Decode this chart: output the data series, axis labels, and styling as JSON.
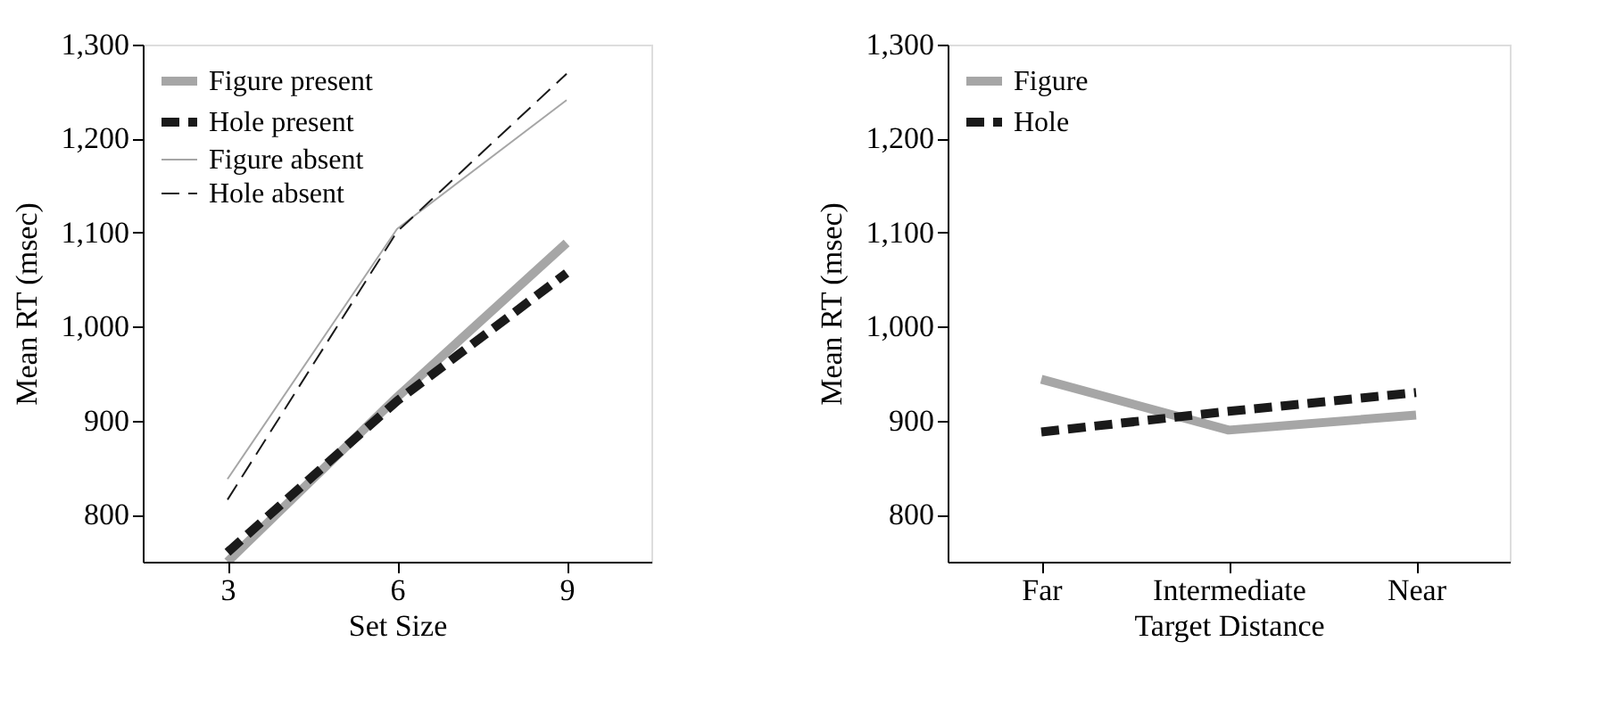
{
  "chart_data": [
    {
      "type": "line",
      "xlabel": "Set Size",
      "ylabel": "Mean RT (msec)",
      "x": [
        3,
        6,
        9
      ],
      "xlim": [
        1.5,
        10.5
      ],
      "xticks": [
        3,
        6,
        9
      ],
      "ylim": [
        750,
        1300
      ],
      "yticks": [
        800,
        900,
        {
          "value": 1000,
          "label": "1,000"
        },
        {
          "value": 1100,
          "label": "1,100"
        },
        {
          "value": 1200,
          "label": "1,200"
        },
        {
          "value": 1300,
          "label": "1,300"
        }
      ],
      "grid": false,
      "legend": "top left",
      "marker": "none",
      "series": [
        {
          "name": "Figure present",
          "color": "#a6a6a6",
          "values": [
            750,
            925,
            1089
          ],
          "line_style": "solid"
        },
        {
          "name": "Hole present",
          "color": "#1a1a1a",
          "values": [
            760,
            921,
            1057
          ],
          "line_style": "dashed"
        },
        {
          "name": "Figure absent",
          "color": "#a6a6a6",
          "values": [
            838,
            1104,
            1241
          ],
          "line_style": "solid"
        },
        {
          "name": "Hole absent",
          "color": "#1a1a1a",
          "values": [
            816,
            1101,
            1269
          ],
          "line_style": "dashed"
        }
      ]
    },
    {
      "type": "line",
      "xlabel": "Target Distance",
      "ylabel": "Mean RT (msec)",
      "categories": [
        "Far",
        "Intermediate",
        "Near"
      ],
      "ylim": [
        750,
        1300
      ],
      "yticks": [
        800,
        900,
        {
          "value": 1000,
          "label": "1,000"
        },
        {
          "value": 1100,
          "label": "1,100"
        },
        {
          "value": 1200,
          "label": "1,200"
        },
        {
          "value": 1300,
          "label": "1,300"
        }
      ],
      "grid": false,
      "legend": "top left",
      "marker": "none",
      "series": [
        {
          "name": "Figure",
          "color": "#a6a6a6",
          "values": [
            944,
            890,
            906
          ],
          "line_style": "solid"
        },
        {
          "name": "Hole",
          "color": "#1a1a1a",
          "values": [
            888,
            910,
            930
          ],
          "line_style": "dashed"
        }
      ]
    }
  ]
}
